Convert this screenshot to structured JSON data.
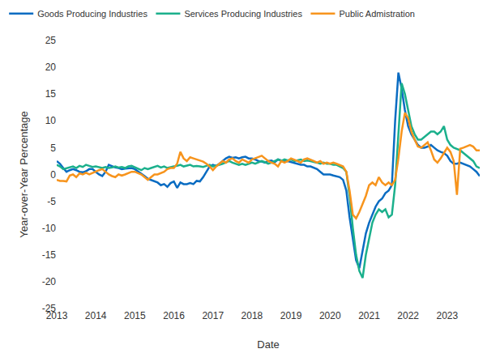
{
  "chart_data": {
    "type": "line",
    "x_label": "Date",
    "y_label": "Year-over-Year Percentage",
    "categories": [
      "2013",
      null,
      null,
      null,
      null,
      null,
      null,
      null,
      null,
      null,
      null,
      null,
      "2014",
      null,
      null,
      null,
      null,
      null,
      null,
      null,
      null,
      null,
      null,
      null,
      "2015",
      null,
      null,
      null,
      null,
      null,
      null,
      null,
      null,
      null,
      null,
      null,
      "2016",
      null,
      null,
      null,
      null,
      null,
      null,
      null,
      null,
      null,
      null,
      null,
      "2017",
      null,
      null,
      null,
      null,
      null,
      null,
      null,
      null,
      null,
      null,
      null,
      "2018",
      null,
      null,
      null,
      null,
      null,
      null,
      null,
      null,
      null,
      null,
      null,
      "2019",
      null,
      null,
      null,
      null,
      null,
      null,
      null,
      null,
      null,
      null,
      null,
      "2020",
      null,
      null,
      null,
      null,
      null,
      null,
      null,
      null,
      null,
      null,
      null,
      "2021",
      null,
      null,
      null,
      null,
      null,
      null,
      null,
      null,
      null,
      null,
      null,
      "2022",
      null,
      null,
      null,
      null,
      null,
      null,
      null,
      null,
      null,
      null,
      null,
      "2023",
      null,
      null,
      null,
      null,
      null,
      null,
      null,
      null,
      null,
      null
    ],
    "series": [
      {
        "name": "Goods Producing Industries",
        "color": "#0a6cc2",
        "values": [
          2.5,
          2.0,
          1.2,
          0.5,
          0.8,
          1.0,
          0.8,
          0.5,
          0.4,
          0.6,
          1.0,
          1.0,
          0.5,
          0.0,
          -0.3,
          0.5,
          1.8,
          1.5,
          1.3,
          1.2,
          1.0,
          1.1,
          1.2,
          1.2,
          1.0,
          0.6,
          0.2,
          -0.3,
          -0.8,
          -1.0,
          -1.2,
          -1.5,
          -2.0,
          -1.8,
          -2.3,
          -1.6,
          -1.3,
          -2.5,
          -1.5,
          -1.8,
          -1.8,
          -1.6,
          -1.8,
          -1.2,
          -1.3,
          -0.5,
          0.5,
          1.5,
          1.8,
          1.6,
          2.0,
          2.5,
          3.0,
          3.3,
          3.1,
          3.2,
          3.0,
          3.2,
          3.3,
          3.0,
          3.0,
          2.8,
          2.5,
          2.4,
          2.2,
          2.5,
          2.6,
          2.3,
          2.8,
          2.6,
          2.4,
          2.5,
          2.3,
          2.2,
          2.0,
          1.8,
          1.8,
          1.5,
          1.5,
          1.2,
          1.0,
          0.5,
          0.0,
          0.0,
          0.0,
          -0.2,
          -0.3,
          -0.5,
          -1.0,
          -3.0,
          -8.0,
          -12.0,
          -16.0,
          -17.5,
          -14.0,
          -11.0,
          -9.0,
          -7.5,
          -6.0,
          -5.0,
          -4.5,
          -3.5,
          -3.0,
          -2.0,
          10.0,
          19.0,
          16.0,
          12.0,
          9.0,
          7.5,
          6.5,
          5.5,
          5.0,
          5.0,
          5.2,
          5.5,
          5.0,
          4.5,
          4.2,
          4.0,
          3.5,
          2.5,
          2.0,
          2.0,
          2.2,
          2.0,
          1.8,
          1.5,
          1.0,
          0.5,
          -0.3
        ]
      },
      {
        "name": "Services Producing Industries",
        "color": "#1bb08c",
        "values": [
          1.8,
          1.5,
          1.0,
          1.2,
          1.3,
          1.5,
          1.2,
          1.6,
          1.4,
          1.8,
          1.6,
          1.4,
          1.5,
          1.3,
          1.2,
          1.4,
          1.2,
          1.3,
          1.5,
          1.3,
          1.4,
          1.2,
          1.5,
          1.6,
          1.3,
          1.0,
          0.8,
          1.2,
          1.0,
          1.2,
          1.4,
          1.6,
          1.3,
          1.5,
          1.2,
          1.4,
          1.5,
          1.6,
          1.8,
          1.5,
          1.6,
          1.8,
          1.5,
          1.6,
          1.5,
          1.4,
          1.6,
          1.8,
          1.5,
          1.6,
          1.8,
          2.0,
          2.2,
          2.5,
          2.2,
          2.0,
          1.8,
          2.0,
          1.8,
          2.0,
          2.2,
          2.0,
          2.2,
          2.5,
          2.3,
          2.0,
          2.2,
          2.5,
          2.8,
          2.5,
          2.8,
          2.6,
          2.8,
          2.5,
          2.6,
          2.8,
          2.5,
          2.6,
          2.5,
          2.4,
          2.2,
          2.0,
          2.2,
          2.0,
          2.0,
          1.8,
          1.8,
          1.5,
          1.2,
          0.5,
          -4.0,
          -10.0,
          -15.0,
          -18.0,
          -19.3,
          -15.0,
          -12.0,
          -9.0,
          -7.5,
          -6.5,
          -7.0,
          -6.5,
          -8.0,
          -7.5,
          -2.0,
          8.0,
          17.0,
          15.0,
          12.0,
          9.0,
          7.5,
          6.5,
          6.5,
          7.0,
          7.5,
          8.0,
          8.0,
          7.5,
          8.0,
          9.0,
          6.5,
          5.5,
          5.0,
          4.8,
          4.5,
          4.0,
          3.5,
          3.0,
          2.5,
          1.5,
          1.2
        ]
      },
      {
        "name": "Public Admistration",
        "color": "#f7941d",
        "values": [
          -1.0,
          -1.2,
          -1.2,
          -1.3,
          -0.2,
          0.0,
          -0.5,
          0.2,
          0.0,
          0.3,
          0.0,
          0.3,
          0.5,
          0.8,
          1.0,
          0.5,
          0.0,
          -0.3,
          -0.5,
          0.0,
          -0.2,
          0.0,
          0.2,
          0.5,
          0.5,
          0.3,
          0.0,
          -0.5,
          -1.0,
          -0.5,
          0.0,
          0.0,
          0.2,
          0.5,
          1.0,
          1.2,
          1.2,
          2.0,
          4.2,
          3.0,
          2.5,
          3.2,
          3.0,
          2.8,
          2.6,
          2.4,
          2.0,
          1.5,
          0.8,
          1.5,
          2.0,
          2.5,
          2.2,
          2.8,
          3.0,
          2.5,
          2.2,
          2.8,
          2.5,
          2.2,
          2.8,
          3.0,
          3.2,
          3.5,
          3.0,
          2.5,
          2.2,
          2.0,
          1.5,
          2.5,
          2.2,
          2.5,
          3.0,
          2.8,
          2.5,
          2.2,
          2.8,
          3.0,
          2.8,
          2.5,
          2.2,
          2.5,
          2.0,
          2.2,
          2.0,
          2.2,
          2.0,
          1.8,
          1.5,
          0.5,
          -3.0,
          -7.5,
          -8.2,
          -7.0,
          -5.5,
          -4.0,
          -2.0,
          -1.5,
          -2.0,
          -0.5,
          -1.5,
          -2.0,
          -1.5,
          -2.0,
          -1.0,
          3.0,
          8.0,
          11.5,
          10.5,
          8.0,
          6.5,
          5.2,
          5.0,
          5.5,
          6.0,
          4.5,
          2.8,
          2.2,
          3.0,
          4.0,
          5.0,
          4.2,
          2.5,
          -3.8,
          4.8,
          5.0,
          5.3,
          5.5,
          5.2,
          4.5,
          4.5
        ]
      }
    ],
    "ylim": [
      -25,
      25
    ],
    "yticks": [
      -25,
      -20,
      -15,
      -10,
      -5,
      0,
      5,
      10,
      15,
      20,
      25
    ],
    "grid": false,
    "legend": "top"
  }
}
